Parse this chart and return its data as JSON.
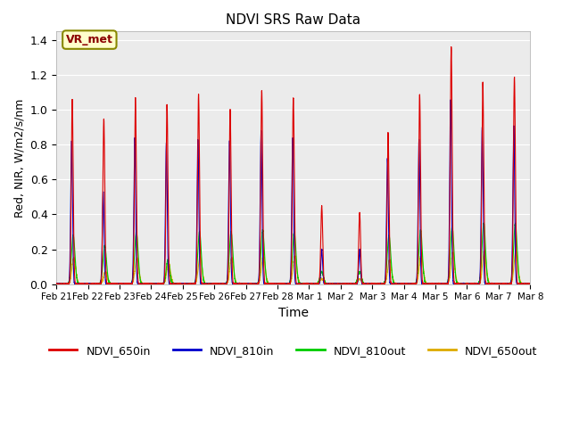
{
  "title": "NDVI SRS Raw Data",
  "xlabel": "Time",
  "ylabel": "Red, NIR, W/m2/s/nm",
  "ylim": [
    0,
    1.45
  ],
  "yticks": [
    0.0,
    0.2,
    0.4,
    0.6,
    0.8,
    1.0,
    1.2,
    1.4
  ],
  "legend_labels": [
    "NDVI_650in",
    "NDVI_810in",
    "NDVI_810out",
    "NDVI_650out"
  ],
  "annotation_text": "VR_met",
  "annotation_bgcolor": "#ffffcc",
  "annotation_edgecolor": "#888800",
  "plot_bgcolor": "#ebebeb",
  "xtick_labels": [
    "Feb 21",
    "Feb 22",
    "Feb 23",
    "Feb 24",
    "Feb 25",
    "Feb 26",
    "Feb 27",
    "Feb 28",
    "Mar 1",
    "Mar 2",
    "Mar 3",
    "Mar 4",
    "Mar 5",
    "Mar 6",
    "Mar 7",
    "Mar 8"
  ],
  "colors": {
    "NDVI_650in": "#dd0000",
    "NDVI_810in": "#0000cc",
    "NDVI_810out": "#00cc00",
    "NDVI_650out": "#ddaa00"
  },
  "peak_heights_650in": [
    1.06,
    0.95,
    1.07,
    1.03,
    1.09,
    1.0,
    1.11,
    1.07,
    0.45,
    0.41,
    0.87,
    1.09,
    1.36,
    1.16,
    1.19
  ],
  "peak_heights_810in": [
    0.82,
    0.53,
    0.84,
    0.81,
    0.83,
    0.82,
    0.88,
    0.84,
    0.2,
    0.2,
    0.72,
    0.83,
    1.06,
    0.9,
    0.91
  ],
  "peak_heights_810out": [
    0.28,
    0.22,
    0.3,
    0.14,
    0.3,
    0.3,
    0.31,
    0.3,
    0.07,
    0.07,
    0.28,
    0.31,
    0.33,
    0.35,
    0.35
  ],
  "peak_heights_650out": [
    0.15,
    0.07,
    0.15,
    0.12,
    0.16,
    0.15,
    0.16,
    0.16,
    0.03,
    0.03,
    0.14,
    0.17,
    0.18,
    0.19,
    0.19
  ],
  "peak_offsets_650in": [
    0.5,
    0.5,
    0.5,
    0.5,
    0.5,
    0.5,
    0.5,
    0.5,
    0.4,
    0.6,
    0.5,
    0.5,
    0.5,
    0.5,
    0.5
  ],
  "peak_offsets_810in": [
    0.48,
    0.48,
    0.48,
    0.48,
    0.48,
    0.48,
    0.48,
    0.48,
    0.4,
    0.6,
    0.48,
    0.48,
    0.48,
    0.48,
    0.48
  ],
  "peak_offsets_810out": [
    0.53,
    0.53,
    0.53,
    0.53,
    0.53,
    0.53,
    0.53,
    0.53,
    0.4,
    0.6,
    0.53,
    0.53,
    0.53,
    0.53,
    0.53
  ],
  "peak_offsets_650out": [
    0.55,
    0.55,
    0.55,
    0.55,
    0.55,
    0.55,
    0.55,
    0.55,
    0.4,
    0.6,
    0.55,
    0.55,
    0.55,
    0.55,
    0.55
  ]
}
